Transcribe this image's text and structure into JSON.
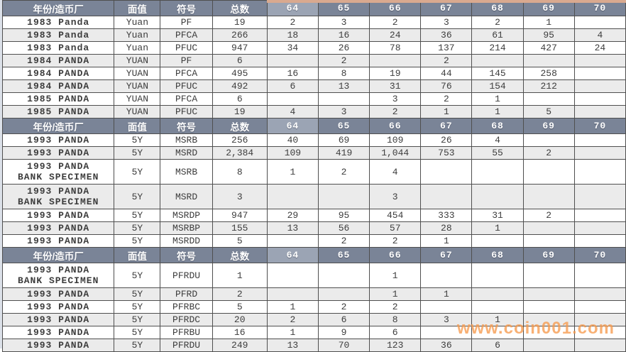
{
  "columns": {
    "year": "年份/造币厂",
    "denomination": "面值",
    "symbol": "符号",
    "total": "总数",
    "grades": [
      "64",
      "65",
      "66",
      "67",
      "68",
      "69",
      "70"
    ],
    "highlighted_grade": "64"
  },
  "sections": [
    {
      "rows": [
        {
          "year": "1983 Panda",
          "denomination": "Yuan",
          "symbol": "PF",
          "total": "19",
          "grades": [
            "2",
            "3",
            "2",
            "3",
            "2",
            "1",
            ""
          ]
        },
        {
          "year": "1983 Panda",
          "denomination": "Yuan",
          "symbol": "PFCA",
          "total": "266",
          "grades": [
            "18",
            "16",
            "24",
            "36",
            "61",
            "95",
            "4"
          ]
        },
        {
          "year": "1983 Panda",
          "denomination": "Yuan",
          "symbol": "PFUC",
          "total": "947",
          "grades": [
            "34",
            "26",
            "78",
            "137",
            "214",
            "427",
            "24"
          ]
        },
        {
          "year": "1984 PANDA",
          "denomination": "YUAN",
          "symbol": "PF",
          "total": "6",
          "grades": [
            "",
            "2",
            "",
            "2",
            "",
            "",
            ""
          ]
        },
        {
          "year": "1984 PANDA",
          "denomination": "YUAN",
          "symbol": "PFCA",
          "total": "495",
          "grades": [
            "16",
            "8",
            "19",
            "44",
            "145",
            "258",
            ""
          ]
        },
        {
          "year": "1984 PANDA",
          "denomination": "YUAN",
          "symbol": "PFUC",
          "total": "492",
          "grades": [
            "6",
            "13",
            "31",
            "76",
            "154",
            "212",
            ""
          ]
        },
        {
          "year": "1985 PANDA",
          "denomination": "YUAN",
          "symbol": "PFCA",
          "total": "6",
          "grades": [
            "",
            "",
            "3",
            "2",
            "1",
            "",
            ""
          ]
        },
        {
          "year": "1985 PANDA",
          "denomination": "YUAN",
          "symbol": "PFUC",
          "total": "19",
          "grades": [
            "4",
            "3",
            "2",
            "1",
            "1",
            "5",
            ""
          ]
        }
      ]
    },
    {
      "rows": [
        {
          "year": "1993 PANDA",
          "denomination": "5Y",
          "symbol": "MSRB",
          "total": "256",
          "grades": [
            "40",
            "69",
            "109",
            "26",
            "4",
            "",
            ""
          ]
        },
        {
          "year": "1993 PANDA",
          "denomination": "5Y",
          "symbol": "MSRD",
          "total": "2,384",
          "grades": [
            "109",
            "419",
            "1,044",
            "753",
            "55",
            "2",
            ""
          ]
        },
        {
          "year": "1993 PANDA BANK SPECIMEN",
          "denomination": "5Y",
          "symbol": "MSRB",
          "total": "8",
          "grades": [
            "1",
            "2",
            "4",
            "",
            "",
            "",
            ""
          ],
          "tall": true
        },
        {
          "year": "1993 PANDA BANK SPECIMEN",
          "denomination": "5Y",
          "symbol": "MSRD",
          "total": "3",
          "grades": [
            "",
            "",
            "3",
            "",
            "",
            "",
            ""
          ],
          "tall": true
        },
        {
          "year": "1993 PANDA",
          "denomination": "5Y",
          "symbol": "MSRDP",
          "total": "947",
          "grades": [
            "29",
            "95",
            "454",
            "333",
            "31",
            "2",
            ""
          ]
        },
        {
          "year": "1993 PANDA",
          "denomination": "5Y",
          "symbol": "MSRBP",
          "total": "155",
          "grades": [
            "13",
            "56",
            "57",
            "28",
            "1",
            "",
            ""
          ]
        },
        {
          "year": "1993 PANDA",
          "denomination": "5Y",
          "symbol": "MSRDD",
          "total": "5",
          "grades": [
            "",
            "2",
            "2",
            "1",
            "",
            "",
            ""
          ]
        }
      ]
    },
    {
      "rows": [
        {
          "year": "1993 PANDA BANK SPECIMEN",
          "denomination": "5Y",
          "symbol": "PFRDU",
          "total": "1",
          "grades": [
            "",
            "",
            "1",
            "",
            "",
            "",
            ""
          ],
          "tall": true
        },
        {
          "year": "1993 PANDA",
          "denomination": "5Y",
          "symbol": "PFRD",
          "total": "2",
          "grades": [
            "",
            "",
            "1",
            "1",
            "",
            "",
            ""
          ]
        },
        {
          "year": "1993 PANDA",
          "denomination": "5Y",
          "symbol": "PFRBC",
          "total": "5",
          "grades": [
            "1",
            "2",
            "2",
            "",
            "",
            "",
            ""
          ]
        },
        {
          "year": "1993 PANDA",
          "denomination": "5Y",
          "symbol": "PFRDC",
          "total": "20",
          "grades": [
            "2",
            "6",
            "8",
            "3",
            "1",
            "",
            ""
          ]
        },
        {
          "year": "1993 PANDA",
          "denomination": "5Y",
          "symbol": "PFRBU",
          "total": "16",
          "grades": [
            "1",
            "9",
            "6",
            "",
            "",
            "",
            ""
          ]
        },
        {
          "year": "1993 PANDA",
          "denomination": "5Y",
          "symbol": "PFRDU",
          "total": "249",
          "grades": [
            "13",
            "70",
            "123",
            "36",
            "6",
            "",
            ""
          ]
        }
      ]
    }
  ],
  "watermark": {
    "text": "www.coin001.com"
  },
  "colors": {
    "header_bg": "#7a8497",
    "header_highlight_bg": "#9ba4b4",
    "stripe_gray": "#ebebeb",
    "stripe_white": "#ffffff",
    "year_text": "#7d8694",
    "data_text": "#3d3d3d",
    "border": "#4f4f4f",
    "left_page_strip": "#dce1e9",
    "top_right_strip": "#d9a98f",
    "watermark_orange": "#f79b4e"
  }
}
